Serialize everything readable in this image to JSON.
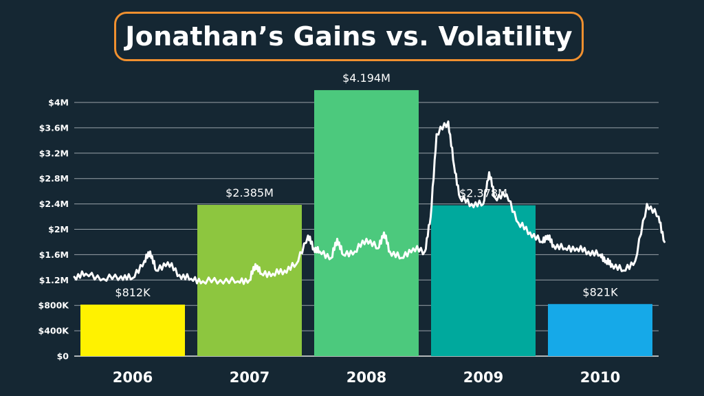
{
  "chart_data": {
    "type": "bar",
    "title": "Jonathan’s Gains vs. Volatility",
    "categories": [
      "2006",
      "2007",
      "2008",
      "2009",
      "2010"
    ],
    "values": [
      812000,
      2385000,
      4194000,
      2378000,
      821000
    ],
    "value_labels": [
      "$812K",
      "$2.385M",
      "$4.194M",
      "$2.378M",
      "$821K"
    ],
    "colors": [
      "#FFF200",
      "#8DC63F",
      "#4CC97D",
      "#00A99D",
      "#16A9E8"
    ],
    "ylim": [
      0,
      4000000
    ],
    "yticks": [
      0,
      400000,
      800000,
      1200000,
      1600000,
      2000000,
      2400000,
      2800000,
      3200000,
      3600000,
      4000000
    ],
    "ytick_labels": [
      "$0",
      "$400K",
      "$800K",
      "$1.2M",
      "$1.6M",
      "$2M",
      "$2.4M",
      "$2.8M",
      "$3.2M",
      "$3.6M",
      "$4M"
    ],
    "grid": true,
    "volatility_series": {
      "color": "#ffffff",
      "x": [
        2005.5,
        2005.6,
        2005.75,
        2005.9,
        2006.0,
        2006.1,
        2006.15,
        2006.2,
        2006.3,
        2006.4,
        2006.5,
        2006.6,
        2006.75,
        2006.9,
        2007.0,
        2007.05,
        2007.1,
        2007.2,
        2007.3,
        2007.4,
        2007.5,
        2007.55,
        2007.6,
        2007.7,
        2007.75,
        2007.8,
        2007.9,
        2008.0,
        2008.1,
        2008.15,
        2008.2,
        2008.3,
        2008.4,
        2008.5,
        2008.55,
        2008.6,
        2008.7,
        2008.75,
        2008.8,
        2008.9,
        2009.0,
        2009.05,
        2009.1,
        2009.2,
        2009.3,
        2009.4,
        2009.5,
        2009.55,
        2009.6,
        2009.7,
        2009.8,
        2009.9,
        2010.0,
        2010.05,
        2010.1,
        2010.2,
        2010.3,
        2010.4,
        2010.5,
        2010.55
      ],
      "y": [
        1250000,
        1300000,
        1220000,
        1260000,
        1230000,
        1500000,
        1650000,
        1350000,
        1480000,
        1280000,
        1220000,
        1180000,
        1200000,
        1180000,
        1200000,
        1450000,
        1300000,
        1300000,
        1350000,
        1450000,
        1900000,
        1700000,
        1650000,
        1550000,
        1850000,
        1600000,
        1650000,
        1850000,
        1700000,
        1950000,
        1650000,
        1550000,
        1700000,
        1650000,
        2200000,
        3500000,
        3700000,
        3000000,
        2500000,
        2400000,
        2400000,
        2900000,
        2500000,
        2550000,
        2100000,
        1950000,
        1800000,
        1900000,
        1750000,
        1700000,
        1700000,
        1650000,
        1600000,
        1500000,
        1450000,
        1350000,
        1500000,
        2400000,
        2200000,
        1800000
      ]
    }
  }
}
